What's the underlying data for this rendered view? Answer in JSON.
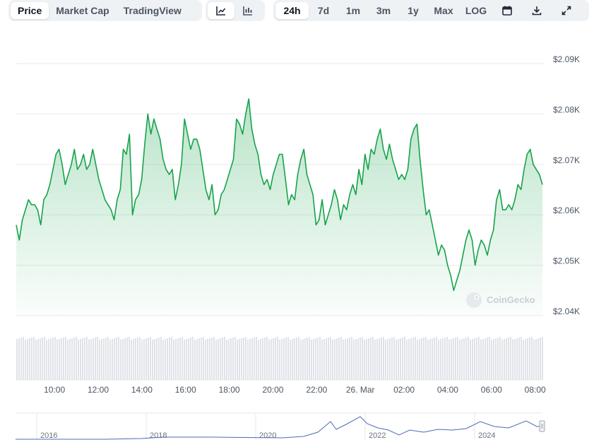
{
  "toolbar": {
    "view_tabs": [
      {
        "label": "Price",
        "active": true
      },
      {
        "label": "Market Cap",
        "active": false
      },
      {
        "label": "TradingView",
        "active": false
      }
    ],
    "chart_type_icons": [
      {
        "icon": "line-chart-icon",
        "active": true
      },
      {
        "icon": "candlestick-chart-icon",
        "active": false
      }
    ],
    "ranges": [
      {
        "label": "24h",
        "active": true
      },
      {
        "label": "7d",
        "active": false
      },
      {
        "label": "1m",
        "active": false
      },
      {
        "label": "3m",
        "active": false
      },
      {
        "label": "1y",
        "active": false
      },
      {
        "label": "Max",
        "active": false
      },
      {
        "label": "LOG",
        "active": false
      }
    ],
    "tool_icons": [
      "calendar-icon",
      "download-icon",
      "expand-icon"
    ]
  },
  "watermark": "CoinGecko",
  "colors": {
    "line": "#16a34a",
    "volume": "#dfe3e8",
    "navigator": "#4a6cb3"
  },
  "chart_data": {
    "type": "area",
    "title": "",
    "xlabel": "",
    "ylabel": "",
    "grid": true,
    "x_ticks": [
      "10:00",
      "12:00",
      "14:00",
      "16:00",
      "18:00",
      "20:00",
      "22:00",
      "26. Mar",
      "02:00",
      "04:00",
      "06:00",
      "08:00"
    ],
    "x_start": "08:15",
    "x_end": "08:20",
    "y_ticks": [
      "$2.04K",
      "$2.05K",
      "$2.06K",
      "$2.07K",
      "$2.08K",
      "$2.09K"
    ],
    "ylim": [
      2040,
      2090
    ],
    "series": [
      {
        "values": [
          2058,
          2055,
          2059,
          2061,
          2063,
          2062,
          2062,
          2061,
          2058,
          2063,
          2064,
          2066,
          2069,
          2072,
          2073,
          2070,
          2066,
          2068,
          2070,
          2073,
          2069,
          2070,
          2072,
          2069,
          2070,
          2073,
          2070,
          2067,
          2065,
          2063,
          2062,
          2061,
          2059,
          2063,
          2065,
          2073,
          2072,
          2076,
          2060,
          2063,
          2064,
          2067,
          2074,
          2080,
          2076,
          2079,
          2077,
          2075,
          2071,
          2069,
          2068,
          2069,
          2063,
          2066,
          2070,
          2079,
          2076,
          2073,
          2075,
          2075,
          2073,
          2069,
          2065,
          2063,
          2066,
          2060,
          2061,
          2064,
          2065,
          2067,
          2069,
          2071,
          2079,
          2078,
          2076,
          2080,
          2083,
          2077,
          2074,
          2072,
          2068,
          2066,
          2067,
          2065,
          2068,
          2070,
          2072,
          2072,
          2067,
          2062,
          2064,
          2063,
          2068,
          2071,
          2073,
          2068,
          2066,
          2064,
          2058,
          2059,
          2063,
          2058,
          2060,
          2062,
          2065,
          2063,
          2059,
          2062,
          2061,
          2064,
          2066,
          2064,
          2069,
          2066,
          2072,
          2069,
          2073,
          2072,
          2075,
          2077,
          2073,
          2071,
          2074,
          2071,
          2069,
          2067,
          2068,
          2067,
          2069,
          2075,
          2077,
          2078,
          2071,
          2065,
          2060,
          2061,
          2058,
          2055,
          2052,
          2054,
          2053,
          2050,
          2048,
          2045,
          2047,
          2049,
          2052,
          2055,
          2057,
          2055,
          2050,
          2053,
          2055,
          2054,
          2052,
          2055,
          2057,
          2063,
          2065,
          2061,
          2061,
          2062,
          2061,
          2063,
          2066,
          2065,
          2069,
          2072,
          2073,
          2070,
          2069,
          2068,
          2066
        ]
      }
    ]
  },
  "navigator": {
    "year_labels": [
      "2016",
      "2018",
      "2020",
      "2022",
      "2024"
    ]
  }
}
